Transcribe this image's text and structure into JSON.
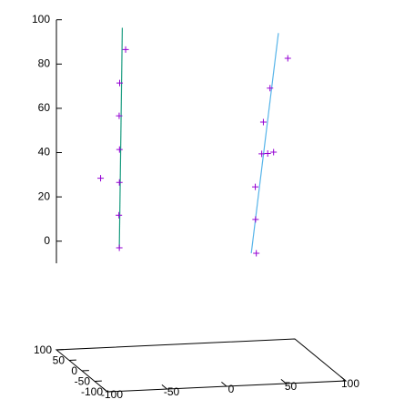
{
  "chart_data": {
    "type": "scatter3d",
    "xlim": [
      -100,
      100
    ],
    "ylim": [
      -100,
      100
    ],
    "zlim": [
      -10,
      100
    ],
    "xticks": [
      -100,
      -50,
      0,
      50,
      100
    ],
    "yticks": [
      -100,
      -50,
      0,
      50,
      100
    ],
    "zticks": [
      0,
      20,
      40,
      60,
      80,
      100
    ],
    "lines": [
      {
        "color": "#1a9c80",
        "x": [
          -50,
          -49
        ],
        "y": [
          87,
          80
        ],
        "z": [
          -3,
          97
        ]
      },
      {
        "color": "#56b4e9",
        "x": [
          56,
          70
        ],
        "y": [
          65,
          24
        ],
        "z": [
          -6,
          97
        ]
      }
    ],
    "points": {
      "color": "#9400d3",
      "x": [
        -46,
        -51,
        -51,
        -49,
        -51,
        -51,
        -50,
        -64,
        83,
        70,
        64,
        62,
        67,
        73,
        57,
        60,
        60
      ],
      "y": [
        81,
        81,
        83,
        91,
        82,
        84,
        87,
        95,
        48,
        57,
        55,
        52,
        52,
        57,
        54,
        67,
        64
      ],
      "z": [
        87,
        72,
        57,
        41,
        27,
        12,
        -3,
        28,
        83,
        69,
        54,
        40,
        40,
        40,
        25,
        9,
        -6
      ]
    }
  }
}
